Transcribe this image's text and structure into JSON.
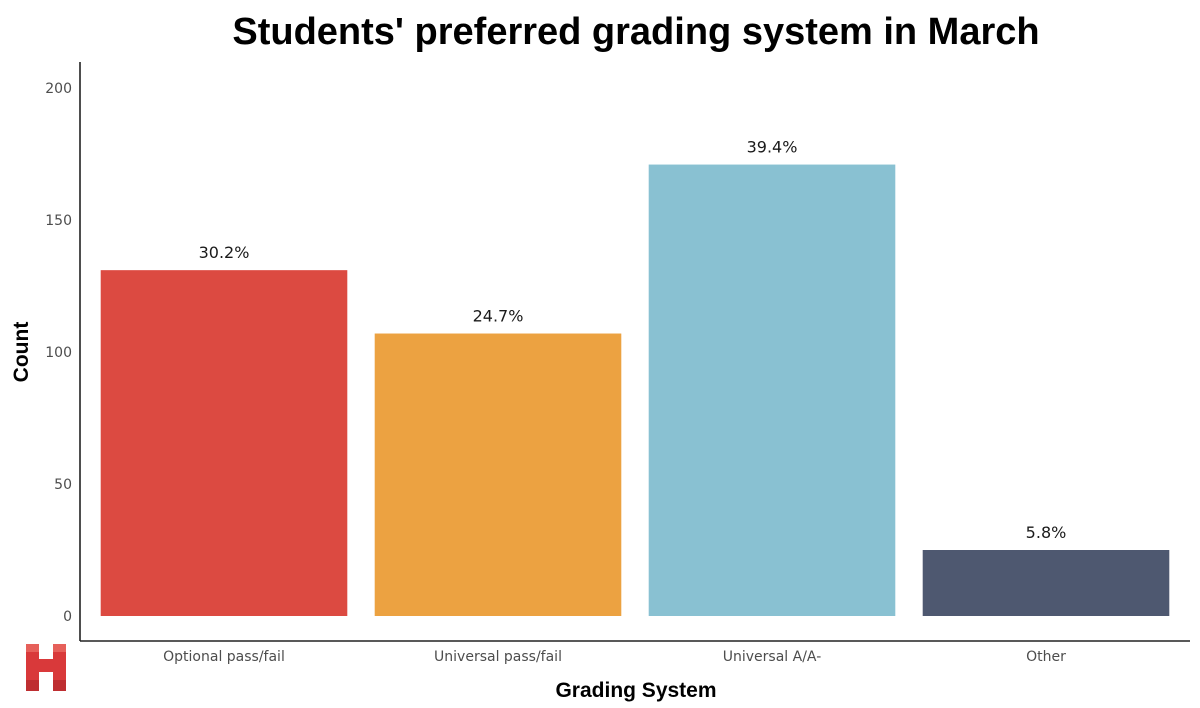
{
  "chart_data": {
    "type": "bar",
    "title": "Students' preferred grading system in March",
    "xlabel": "Grading System",
    "ylabel": "Count",
    "ylim": [
      0,
      200
    ],
    "y_ticks": [
      0,
      50,
      100,
      150,
      200
    ],
    "grid": false,
    "categories": [
      "Optional pass/fail",
      "Universal pass/fail",
      "Universal A/A-",
      "Other"
    ],
    "values": [
      131,
      107,
      171,
      25
    ],
    "data_labels": [
      "30.2%",
      "24.7%",
      "39.4%",
      "5.8%"
    ],
    "colors": [
      "#dc4a41",
      "#eca241",
      "#89c1d2",
      "#4e5870"
    ]
  },
  "logo": {
    "name": "H",
    "color": "#d9393a"
  }
}
